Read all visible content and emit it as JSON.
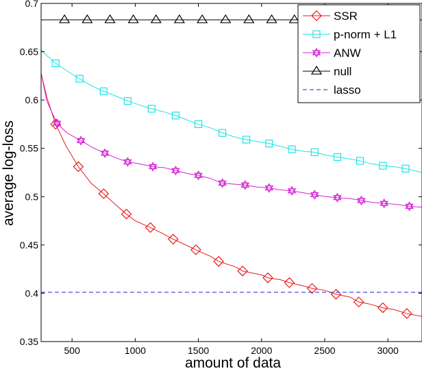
{
  "chart_data": {
    "type": "line",
    "title": "",
    "xlabel": "amount of data",
    "ylabel": "average log-loss",
    "xlim": [
      255,
      3270
    ],
    "ylim": [
      0.35,
      0.7
    ],
    "xticks": [
      500,
      1000,
      1500,
      2000,
      2500,
      3000
    ],
    "yticks": [
      0.35,
      0.4,
      0.45,
      0.5,
      0.55,
      0.6,
      0.65,
      0.7
    ],
    "xtick_labels": [
      "500",
      "1000",
      "1500",
      "2000",
      "2500",
      "3000"
    ],
    "ytick_labels": [
      "0.35",
      "0.4",
      "0.45",
      "0.5",
      "0.55",
      "0.6",
      "0.65",
      "0.7"
    ],
    "grid": false,
    "legend_position": "top-right",
    "series": [
      {
        "name": "SSR",
        "color": "#e8191c",
        "marker": "diamond",
        "line_style": "solid",
        "x": [
          255,
          300,
          370,
          450,
          550,
          650,
          750,
          850,
          930,
          1000,
          1120,
          1200,
          1300,
          1400,
          1480,
          1600,
          1660,
          1800,
          1850,
          2000,
          2050,
          2150,
          2220,
          2320,
          2400,
          2500,
          2590,
          2700,
          2770,
          2850,
          2960,
          3050,
          3150,
          3270
        ],
        "y": [
          0.628,
          0.603,
          0.575,
          0.553,
          0.531,
          0.514,
          0.503,
          0.491,
          0.482,
          0.475,
          0.468,
          0.463,
          0.456,
          0.45,
          0.445,
          0.438,
          0.433,
          0.427,
          0.423,
          0.419,
          0.416,
          0.414,
          0.411,
          0.408,
          0.405,
          0.403,
          0.399,
          0.396,
          0.391,
          0.389,
          0.385,
          0.383,
          0.379,
          0.376
        ],
        "marker_x": [
          370,
          550,
          750,
          930,
          1120,
          1300,
          1480,
          1660,
          1850,
          2050,
          2220,
          2400,
          2590,
          2770,
          2960,
          3150
        ],
        "marker_y": [
          0.575,
          0.531,
          0.503,
          0.482,
          0.468,
          0.456,
          0.445,
          0.433,
          0.423,
          0.416,
          0.411,
          0.405,
          0.399,
          0.391,
          0.385,
          0.379
        ]
      },
      {
        "name": "p-norm + L1",
        "color": "#1de3e3",
        "marker": "square",
        "line_style": "solid",
        "x": [
          255,
          300,
          370,
          450,
          560,
          650,
          750,
          850,
          940,
          1030,
          1130,
          1220,
          1320,
          1400,
          1500,
          1600,
          1690,
          1780,
          1880,
          1970,
          2060,
          2150,
          2240,
          2330,
          2420,
          2510,
          2600,
          2700,
          2780,
          2870,
          2960,
          3050,
          3140,
          3270
        ],
        "y": [
          0.652,
          0.646,
          0.638,
          0.631,
          0.622,
          0.615,
          0.609,
          0.604,
          0.599,
          0.595,
          0.591,
          0.588,
          0.584,
          0.58,
          0.575,
          0.571,
          0.566,
          0.562,
          0.559,
          0.557,
          0.555,
          0.552,
          0.549,
          0.547,
          0.546,
          0.543,
          0.541,
          0.539,
          0.537,
          0.534,
          0.532,
          0.531,
          0.529,
          0.525
        ],
        "marker_x": [
          370,
          560,
          750,
          940,
          1130,
          1320,
          1500,
          1690,
          1880,
          2060,
          2240,
          2420,
          2600,
          2780,
          2960,
          3140
        ],
        "marker_y": [
          0.638,
          0.622,
          0.609,
          0.599,
          0.591,
          0.584,
          0.575,
          0.566,
          0.559,
          0.555,
          0.549,
          0.546,
          0.541,
          0.537,
          0.532,
          0.529
        ]
      },
      {
        "name": "ANW",
        "color": "#d41fd4",
        "marker": "hexagram",
        "line_style": "solid",
        "x": [
          255,
          300,
          380,
          460,
          570,
          660,
          760,
          850,
          940,
          1030,
          1140,
          1230,
          1320,
          1410,
          1500,
          1590,
          1690,
          1780,
          1870,
          1960,
          2060,
          2150,
          2240,
          2330,
          2420,
          2510,
          2600,
          2700,
          2790,
          2880,
          2970,
          3070,
          3170,
          3270
        ],
        "y": [
          0.628,
          0.599,
          0.576,
          0.566,
          0.558,
          0.551,
          0.545,
          0.54,
          0.536,
          0.534,
          0.531,
          0.53,
          0.527,
          0.524,
          0.522,
          0.519,
          0.514,
          0.513,
          0.512,
          0.51,
          0.509,
          0.507,
          0.506,
          0.504,
          0.502,
          0.5,
          0.499,
          0.498,
          0.496,
          0.494,
          0.493,
          0.492,
          0.49,
          0.489
        ],
        "marker_x": [
          380,
          570,
          760,
          940,
          1140,
          1320,
          1500,
          1690,
          1870,
          2060,
          2240,
          2420,
          2600,
          2790,
          2970,
          3170
        ],
        "marker_y": [
          0.576,
          0.558,
          0.545,
          0.536,
          0.531,
          0.527,
          0.522,
          0.514,
          0.512,
          0.509,
          0.506,
          0.502,
          0.499,
          0.496,
          0.493,
          0.49
        ]
      },
      {
        "name": "null",
        "color": "#000000",
        "marker": "triangle",
        "line_style": "solid",
        "x": [
          255,
          3270
        ],
        "y": [
          0.683,
          0.683
        ],
        "marker_x": [
          440,
          620,
          800,
          985,
          1165,
          1350,
          1530,
          1715,
          1900,
          2080,
          2260,
          2450,
          2630,
          2810,
          3000,
          3180
        ],
        "marker_y": [
          0.683,
          0.683,
          0.683,
          0.683,
          0.683,
          0.683,
          0.683,
          0.683,
          0.683,
          0.683,
          0.683,
          0.683,
          0.683,
          0.683,
          0.683,
          0.683
        ]
      },
      {
        "name": "lasso",
        "color": "#1c1cd6",
        "marker": "none",
        "line_style": "dashed",
        "x": [
          255,
          3270
        ],
        "y": [
          0.401,
          0.401
        ],
        "marker_x": [],
        "marker_y": []
      }
    ]
  }
}
